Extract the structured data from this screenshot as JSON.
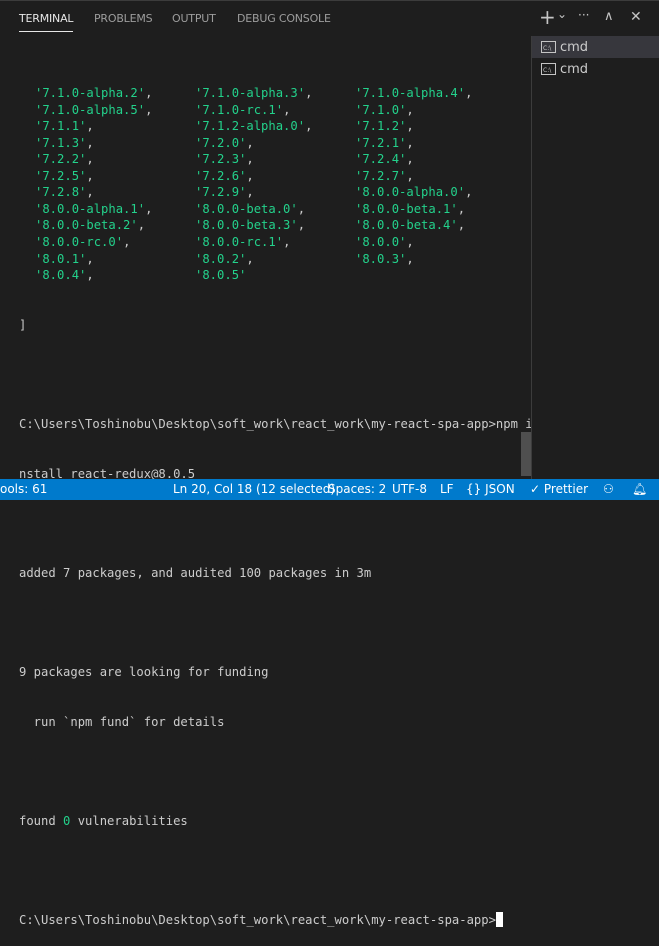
{
  "tabs": [
    "TERMINAL",
    "PROBLEMS",
    "OUTPUT",
    "DEBUG CONSOLE"
  ],
  "actions": {
    "new": "+",
    "dropdown": "⌄",
    "more": "···",
    "maximize": "∧",
    "close": "✕"
  },
  "terminal_list": [
    {
      "label": "cmd",
      "selected": true
    },
    {
      "label": "cmd",
      "selected": false
    }
  ],
  "versions": [
    [
      "7.1.0-alpha.2",
      "7.1.0-alpha.3",
      "7.1.0-alpha.4"
    ],
    [
      "7.1.0-alpha.5",
      "7.1.0-rc.1",
      "7.1.0"
    ],
    [
      "7.1.1",
      "7.1.2-alpha.0",
      "7.1.2"
    ],
    [
      "7.1.3",
      "7.2.0",
      "7.2.1"
    ],
    [
      "7.2.2",
      "7.2.3",
      "7.2.4"
    ],
    [
      "7.2.5",
      "7.2.6",
      "7.2.7"
    ],
    [
      "7.2.8",
      "7.2.9",
      "8.0.0-alpha.0"
    ],
    [
      "8.0.0-alpha.1",
      "8.0.0-beta.0",
      "8.0.0-beta.1"
    ],
    [
      "8.0.0-beta.2",
      "8.0.0-beta.3",
      "8.0.0-beta.4"
    ],
    [
      "8.0.0-rc.0",
      "8.0.0-rc.1",
      "8.0.0"
    ],
    [
      "8.0.1",
      "8.0.2",
      "8.0.3"
    ],
    [
      "8.0.4",
      "8.0.5"
    ]
  ],
  "output": {
    "close_bracket": "]",
    "cmd_line1": "C:\\Users\\Toshinobu\\Desktop\\soft_work\\react_work\\my-react-spa-app>npm i",
    "cmd_line2": "nstall react-redux@8.0.5",
    "added": "added 7 packages, and audited 100 packages in 3m",
    "funding1": "9 packages are looking for funding",
    "funding2": "  run `npm fund` for details",
    "vuln_pre": "found ",
    "vuln_count": "0",
    "vuln_post": " vulnerabilities",
    "prompt": "C:\\Users\\Toshinobu\\Desktop\\soft_work\\react_work\\my-react-spa-app>"
  },
  "status": {
    "left": "ools: 61",
    "position": "Ln 20, Col 18 (12 selected)",
    "spaces": "Spaces: 2",
    "encoding": "UTF-8",
    "eol": "LF",
    "language": "JSON",
    "prettier": "Prettier",
    "feedback_icon": "person-feedback-icon",
    "bell_icon": "bell-icon"
  },
  "colors": {
    "string": "#23d18b",
    "statusbar": "#007acc",
    "background": "#1e1e1e"
  }
}
